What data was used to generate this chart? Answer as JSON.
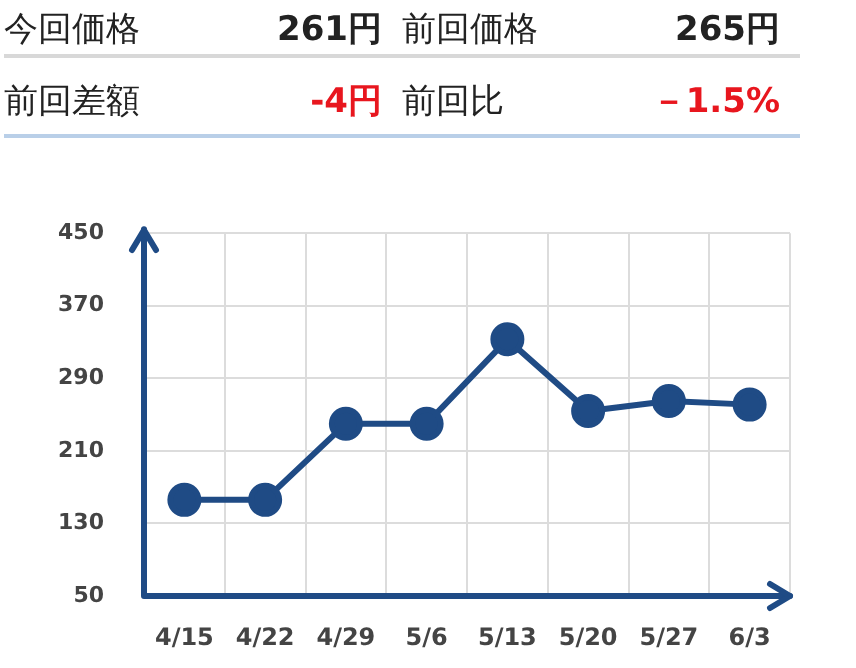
{
  "chart_data": [
    {
      "type": "other",
      "annotations": [
        "今回価格",
        "261円",
        "前回価格",
        "265円",
        "前回差額",
        "-4円",
        "前回比",
        "－1.5%"
      ]
    },
    {
      "type": "line",
      "categories": [
        "4/15",
        "4/22",
        "4/29",
        "5/6",
        "5/13",
        "5/20",
        "5/27",
        "6/3"
      ],
      "series": [
        {
          "color": "#1f4b85",
          "values": [
            156,
            156,
            240,
            240,
            333,
            254,
            265,
            261
          ]
        }
      ],
      "ylim": [
        50,
        450
      ],
      "yticks": [
        50,
        130,
        210,
        290,
        370,
        450
      ],
      "grid": true,
      "legend": false,
      "marker": "circle",
      "line_style": "solid"
    }
  ]
}
